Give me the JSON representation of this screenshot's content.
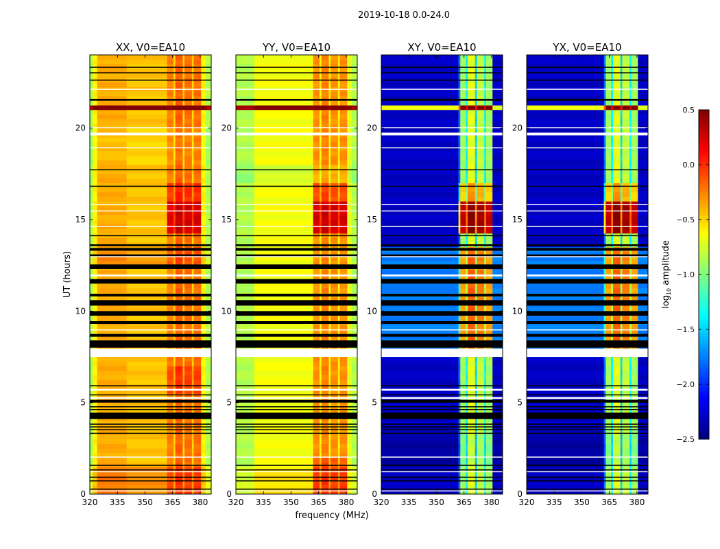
{
  "chart_data": {
    "type": "heatmap",
    "title": "2019-10-18 0.0-24.0",
    "xlabel": "frequency (MHz)",
    "ylabel": "UT (hours)",
    "xlim": [
      320,
      386
    ],
    "ylim": [
      0,
      24
    ],
    "xticks": [
      320,
      335,
      350,
      365,
      380
    ],
    "yticks": [
      0,
      5,
      10,
      15,
      20
    ],
    "xtick_labels": [
      "320",
      "335",
      "350",
      "365",
      "380"
    ],
    "ytick_labels": [
      "0",
      "5",
      "10",
      "15",
      "20"
    ],
    "colorbar": {
      "label_main": "log",
      "label_sub": "10",
      "label_rest": " amplitude",
      "range": [
        -2.5,
        0.5
      ],
      "colormap": "jet",
      "ticks": [
        0.5,
        0.0,
        -0.5,
        -1.0,
        -1.5,
        -2.0,
        -2.5
      ],
      "tick_labels": [
        "0.5",
        "0.0",
        "−0.5",
        "−1.0",
        "−1.5",
        "−2.0",
        "−2.5"
      ]
    },
    "band_range_mhz": [
      362,
      381
    ],
    "flagged_hours": [
      [
        0.25,
        0.3
      ],
      [
        0.7,
        0.75
      ],
      [
        0.9,
        0.95
      ],
      [
        1.3,
        1.35
      ],
      [
        1.55,
        1.6
      ],
      [
        3.3,
        3.35
      ],
      [
        3.5,
        3.55
      ],
      [
        3.65,
        3.7
      ],
      [
        3.8,
        3.85
      ],
      [
        4.1,
        4.45
      ],
      [
        4.6,
        4.65
      ],
      [
        4.75,
        4.8
      ],
      [
        5.0,
        5.15
      ],
      [
        5.4,
        5.45
      ],
      [
        5.9,
        5.95
      ],
      [
        8.0,
        8.4
      ],
      [
        8.6,
        8.75
      ],
      [
        9.3,
        9.45
      ],
      [
        9.75,
        10.0
      ],
      [
        10.3,
        10.6
      ],
      [
        10.8,
        10.95
      ],
      [
        11.5,
        11.75
      ],
      [
        12.3,
        12.55
      ],
      [
        13.0,
        13.1
      ],
      [
        13.3,
        13.45
      ],
      [
        13.55,
        13.65
      ],
      [
        14.1,
        14.15
      ],
      [
        16.8,
        16.85
      ],
      [
        17.7,
        17.75
      ],
      [
        21.5,
        21.6
      ],
      [
        22.6,
        22.65
      ],
      [
        23.0,
        23.05
      ],
      [
        23.3,
        23.35
      ]
    ],
    "blank_hours": [
      [
        0.15,
        0.2
      ],
      [
        1.2,
        1.25
      ],
      [
        2.0,
        2.05
      ],
      [
        5.2,
        5.3
      ],
      [
        5.65,
        5.75
      ],
      [
        7.5,
        7.95
      ],
      [
        8.95,
        9.0
      ],
      [
        11.9,
        12.0
      ],
      [
        12.95,
        13.0
      ],
      [
        14.6,
        14.65
      ],
      [
        15.45,
        15.5
      ],
      [
        15.8,
        15.85
      ],
      [
        18.9,
        18.95
      ],
      [
        19.6,
        19.75
      ],
      [
        20.0,
        20.05
      ],
      [
        22.1,
        22.15
      ]
    ],
    "panels": [
      {
        "title": "XX, V0=EA10",
        "freq_profile": [
          [
            320,
            321.5,
            -0.9
          ],
          [
            321.5,
            324,
            -0.6
          ],
          [
            324,
            340,
            -0.38
          ],
          [
            340,
            362,
            -0.45
          ],
          [
            362,
            365.5,
            -0.25
          ],
          [
            365.5,
            366.5,
            -0.5
          ],
          [
            366.5,
            370.5,
            -0.15
          ],
          [
            370.5,
            371.5,
            -0.5
          ],
          [
            371.5,
            375.5,
            -0.2
          ],
          [
            375.5,
            376.5,
            -0.5
          ],
          [
            376.5,
            380.5,
            -0.2
          ],
          [
            380.5,
            383,
            -0.6
          ],
          [
            383,
            386,
            -0.85
          ]
        ],
        "row_offsets": [
          [
            0,
            1.5,
            0.15
          ],
          [
            12.5,
            13.5,
            0.1
          ],
          [
            18,
            20,
            -0.05
          ]
        ],
        "band_boosts": [
          [
            14.3,
            16.0,
            0.45
          ],
          [
            16.0,
            17.0,
            0.2
          ],
          [
            5.5,
            7.0,
            0.15
          ]
        ],
        "full_boosts": [
          [
            21.0,
            21.3,
            1.2
          ]
        ]
      },
      {
        "title": "YY, V0=EA10",
        "freq_profile": [
          [
            320,
            330,
            -0.85
          ],
          [
            330,
            362,
            -0.65
          ],
          [
            362,
            365.5,
            -0.3
          ],
          [
            365.5,
            366.5,
            -0.6
          ],
          [
            366.5,
            370.5,
            -0.25
          ],
          [
            370.5,
            371.5,
            -0.6
          ],
          [
            371.5,
            375.5,
            -0.3
          ],
          [
            375.5,
            376.5,
            -0.6
          ],
          [
            376.5,
            380.5,
            -0.3
          ],
          [
            380.5,
            383,
            -0.7
          ],
          [
            383,
            386,
            -0.85
          ]
        ],
        "row_offsets": [
          [
            0,
            1.5,
            0.1
          ],
          [
            17,
            18,
            -0.1
          ]
        ],
        "band_boosts": [
          [
            14.3,
            16.0,
            0.55
          ],
          [
            16.0,
            17.0,
            0.2
          ],
          [
            0,
            2.0,
            0.15
          ]
        ],
        "full_boosts": [
          [
            21.0,
            21.3,
            1.2
          ]
        ]
      },
      {
        "title": "XY, V0=EA10",
        "freq_profile": [
          [
            320,
            362,
            -2.3
          ],
          [
            362,
            363,
            -1.8
          ],
          [
            363,
            366,
            -0.9
          ],
          [
            366,
            367,
            -1.4
          ],
          [
            367,
            371,
            -0.7
          ],
          [
            371,
            372,
            -1.5
          ],
          [
            372,
            376,
            -0.8
          ],
          [
            376,
            377,
            -1.4
          ],
          [
            377,
            380.5,
            -0.9
          ],
          [
            380.5,
            386,
            -2.3
          ]
        ],
        "row_offsets": [
          [
            7.5,
            13.5,
            0.55
          ],
          [
            1.5,
            3.3,
            -0.1
          ]
        ],
        "band_boosts": [
          [
            14.3,
            16.0,
            1.2
          ],
          [
            16.0,
            17.0,
            0.4
          ]
        ],
        "full_boosts": [
          [
            21.0,
            21.3,
            1.6
          ]
        ]
      },
      {
        "title": "YX, V0=EA10",
        "freq_profile": [
          [
            320,
            362,
            -2.3
          ],
          [
            362,
            363,
            -1.8
          ],
          [
            363,
            366,
            -0.9
          ],
          [
            366,
            367,
            -1.4
          ],
          [
            367,
            371,
            -0.7
          ],
          [
            371,
            372,
            -1.5
          ],
          [
            372,
            376,
            -0.8
          ],
          [
            376,
            377,
            -1.4
          ],
          [
            377,
            380.5,
            -0.9
          ],
          [
            380.5,
            386,
            -2.3
          ]
        ],
        "row_offsets": [
          [
            7.5,
            13.5,
            0.55
          ],
          [
            1.5,
            3.3,
            -0.1
          ]
        ],
        "band_boosts": [
          [
            14.3,
            16.0,
            1.2
          ],
          [
            16.0,
            17.0,
            0.4
          ]
        ],
        "full_boosts": [
          [
            21.0,
            21.3,
            1.6
          ]
        ]
      }
    ],
    "time_resolution_hours": 0.25
  }
}
